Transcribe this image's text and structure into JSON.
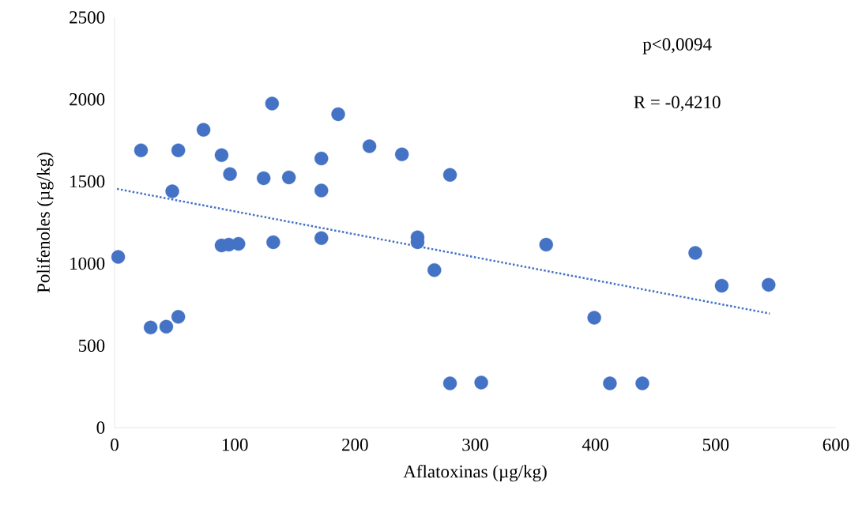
{
  "chart_data": {
    "type": "scatter",
    "xlabel": "Aflatoxinas (µg/kg)",
    "ylabel": "Polifenoles (µg/kg)",
    "annotations": [
      "p<0,0094",
      "R = -0,4210"
    ],
    "xlim": [
      0,
      600
    ],
    "ylim": [
      0,
      2500
    ],
    "xticks": [
      0,
      100,
      200,
      300,
      400,
      500,
      600
    ],
    "yticks": [
      0,
      500,
      1000,
      1500,
      2000,
      2500
    ],
    "grid": false,
    "series": [
      {
        "marker": "circle",
        "color": "#4472c4",
        "x": [
          3,
          22,
          30,
          43,
          48,
          53,
          53,
          74,
          89,
          89,
          95,
          96,
          103,
          124,
          131,
          132,
          145,
          172,
          172,
          172,
          186,
          212,
          239,
          252,
          252,
          266,
          279,
          279,
          305,
          359,
          399,
          412,
          439,
          483,
          505,
          544
        ],
        "values": [
          1040,
          1690,
          610,
          615,
          1440,
          1690,
          675,
          1815,
          1660,
          1110,
          1115,
          1545,
          1120,
          1520,
          1975,
          1130,
          1525,
          1640,
          1445,
          1155,
          1910,
          1715,
          1665,
          1160,
          1130,
          960,
          1540,
          270,
          275,
          1115,
          670,
          270,
          270,
          1065,
          865,
          870
        ]
      },
      {
        "type": "line",
        "marker": "none",
        "color": "#4472c4",
        "line_style": "dotted",
        "x": [
          2,
          545
        ],
        "values": [
          1455,
          695
        ]
      }
    ]
  }
}
